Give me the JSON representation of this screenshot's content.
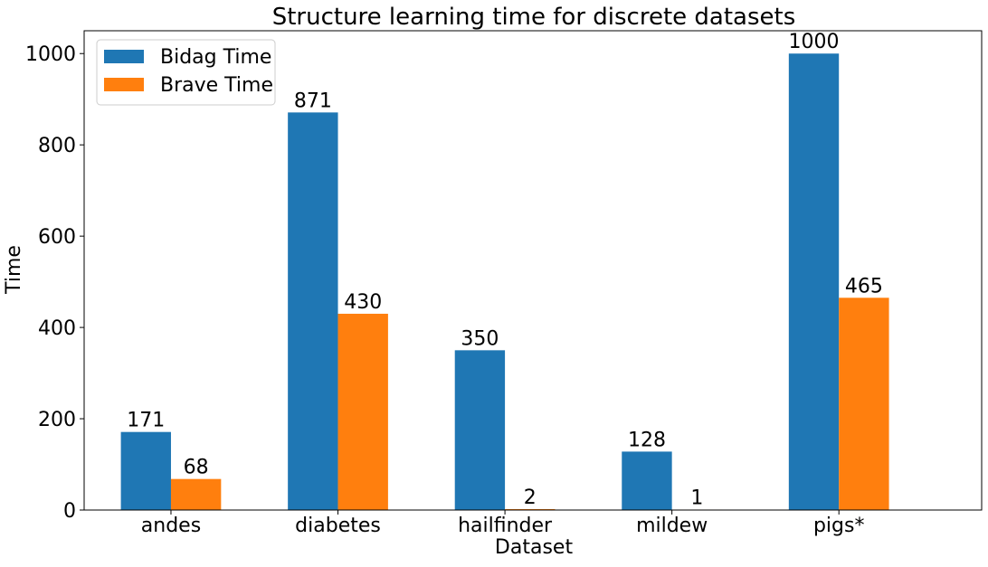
{
  "chart_data": {
    "type": "bar",
    "title": "Structure learning time for discrete datasets",
    "xlabel": "Dataset",
    "ylabel": "Time",
    "categories": [
      "andes",
      "diabetes",
      "hailfinder",
      "mildew",
      "pigs*"
    ],
    "series": [
      {
        "name": "Bidag Time",
        "color": "#1f77b4",
        "values": [
          171,
          871,
          350,
          128,
          1000
        ]
      },
      {
        "name": "Brave Time",
        "color": "#ff7f0e",
        "values": [
          68,
          430,
          2,
          1,
          465
        ]
      }
    ],
    "ylim": [
      0,
      1050
    ],
    "yticks": [
      0,
      200,
      400,
      600,
      800,
      1000
    ],
    "grid": false,
    "legend_position": "top-left"
  }
}
